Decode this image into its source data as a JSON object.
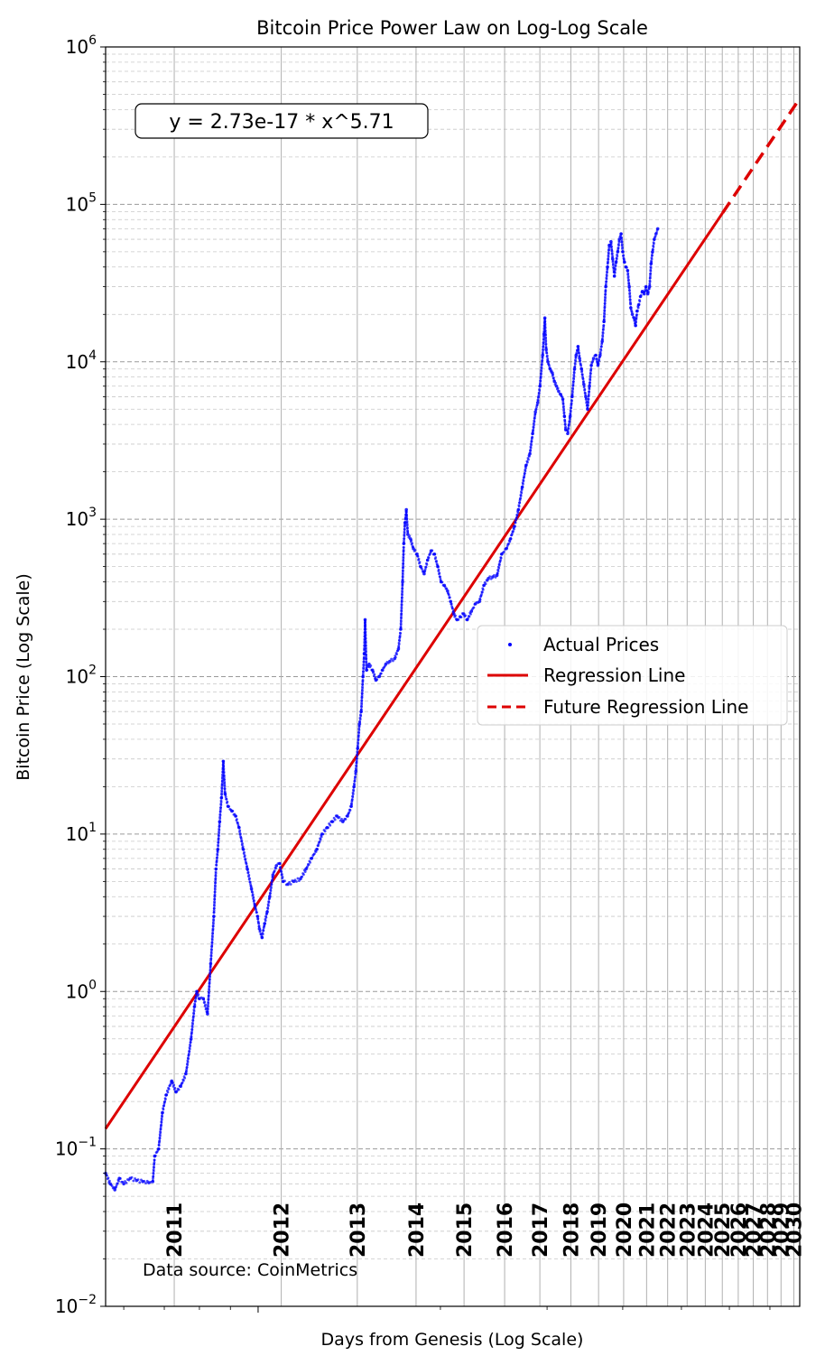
{
  "chart_data": {
    "type": "scatter",
    "title": "Bitcoin Price Power Law on Log-Log Scale",
    "xlabel": "Days from Genesis (Log Scale)",
    "ylabel": "Bitcoin Price (Log Scale)",
    "x_scale": "log",
    "y_scale": "log",
    "xlim": [
      560,
      7840
    ],
    "ylim": [
      0.01,
      1000000
    ],
    "grid": true,
    "legend_position": "center-right",
    "y_ticks": [
      {
        "base": "10",
        "exp": "−2",
        "value": 0.01
      },
      {
        "base": "10",
        "exp": "−1",
        "value": 0.1
      },
      {
        "base": "10",
        "exp": "0",
        "value": 1
      },
      {
        "base": "10",
        "exp": "1",
        "value": 10
      },
      {
        "base": "10",
        "exp": "2",
        "value": 100
      },
      {
        "base": "10",
        "exp": "3",
        "value": 1000
      },
      {
        "base": "10",
        "exp": "4",
        "value": 10000
      },
      {
        "base": "10",
        "exp": "5",
        "value": 100000
      },
      {
        "base": "10",
        "exp": "6",
        "value": 1000000
      }
    ],
    "year_markers": [
      {
        "label": "2011",
        "x": 727
      },
      {
        "label": "2012",
        "x": 1092
      },
      {
        "label": "2013",
        "x": 1458
      },
      {
        "label": "2014",
        "x": 1823
      },
      {
        "label": "2015",
        "x": 2188
      },
      {
        "label": "2016",
        "x": 2553
      },
      {
        "label": "2017",
        "x": 2919
      },
      {
        "label": "2018",
        "x": 3284
      },
      {
        "label": "2019",
        "x": 3649
      },
      {
        "label": "2020",
        "x": 4014
      },
      {
        "label": "2021",
        "x": 4380
      },
      {
        "label": "2022",
        "x": 4745
      },
      {
        "label": "2023",
        "x": 5110
      },
      {
        "label": "2024",
        "x": 5475
      },
      {
        "label": "2025",
        "x": 5841
      },
      {
        "label": "2026",
        "x": 6206
      },
      {
        "label": "2027",
        "x": 6571
      },
      {
        "label": "2028",
        "x": 6936
      },
      {
        "label": "2029",
        "x": 7302
      },
      {
        "label": "2030",
        "x": 7667
      }
    ],
    "equation_label": "y = 2.73e-17 * x^5.71",
    "source_note": "Data source: CoinMetrics",
    "regression": {
      "coefficient": 2.73e-17,
      "exponent": 5.71,
      "x_start": 560,
      "x_end": 5850,
      "future_x_end": 7840
    },
    "series": [
      {
        "name": "Actual Prices",
        "kind": "scatter",
        "color": "#0000ff",
        "points": [
          [
            560,
            0.07
          ],
          [
            570,
            0.06
          ],
          [
            580,
            0.055
          ],
          [
            590,
            0.065
          ],
          [
            600,
            0.06
          ],
          [
            615,
            0.065
          ],
          [
            630,
            0.063
          ],
          [
            645,
            0.062
          ],
          [
            660,
            0.061
          ],
          [
            670,
            0.062
          ],
          [
            675,
            0.09
          ],
          [
            685,
            0.1
          ],
          [
            695,
            0.17
          ],
          [
            705,
            0.22
          ],
          [
            720,
            0.27
          ],
          [
            732,
            0.23
          ],
          [
            745,
            0.25
          ],
          [
            760,
            0.3
          ],
          [
            775,
            0.5
          ],
          [
            785,
            0.8
          ],
          [
            792,
            1.0
          ],
          [
            800,
            0.9
          ],
          [
            812,
            0.9
          ],
          [
            825,
            0.72
          ],
          [
            835,
            1.5
          ],
          [
            845,
            3.0
          ],
          [
            852,
            6.0
          ],
          [
            858,
            8.0
          ],
          [
            864,
            12
          ],
          [
            870,
            17
          ],
          [
            876,
            29
          ],
          [
            882,
            18
          ],
          [
            892,
            15
          ],
          [
            905,
            14
          ],
          [
            918,
            13
          ],
          [
            930,
            11
          ],
          [
            945,
            8
          ],
          [
            960,
            6
          ],
          [
            975,
            4.5
          ],
          [
            988,
            3.5
          ],
          [
            998,
            3.0
          ],
          [
            1005,
            2.5
          ],
          [
            1015,
            2.2
          ],
          [
            1025,
            2.7
          ],
          [
            1035,
            3.2
          ],
          [
            1045,
            4.0
          ],
          [
            1058,
            5.5
          ],
          [
            1072,
            6.3
          ],
          [
            1085,
            6.5
          ],
          [
            1100,
            5.0
          ],
          [
            1120,
            4.8
          ],
          [
            1145,
            5.0
          ],
          [
            1175,
            5.2
          ],
          [
            1200,
            6.0
          ],
          [
            1225,
            7.0
          ],
          [
            1250,
            8.0
          ],
          [
            1275,
            10
          ],
          [
            1300,
            11
          ],
          [
            1325,
            12
          ],
          [
            1350,
            13
          ],
          [
            1380,
            12
          ],
          [
            1405,
            13
          ],
          [
            1425,
            15
          ],
          [
            1440,
            20
          ],
          [
            1450,
            25
          ],
          [
            1460,
            35
          ],
          [
            1470,
            50
          ],
          [
            1480,
            60
          ],
          [
            1490,
            100
          ],
          [
            1497,
            140
          ],
          [
            1502,
            230
          ],
          [
            1510,
            110
          ],
          [
            1525,
            120
          ],
          [
            1545,
            110
          ],
          [
            1565,
            95
          ],
          [
            1585,
            100
          ],
          [
            1605,
            110
          ],
          [
            1625,
            120
          ],
          [
            1650,
            125
          ],
          [
            1680,
            130
          ],
          [
            1705,
            150
          ],
          [
            1720,
            200
          ],
          [
            1732,
            400
          ],
          [
            1740,
            700
          ],
          [
            1748,
            950
          ],
          [
            1757,
            1150
          ],
          [
            1767,
            800
          ],
          [
            1785,
            750
          ],
          [
            1805,
            650
          ],
          [
            1830,
            600
          ],
          [
            1855,
            500
          ],
          [
            1880,
            450
          ],
          [
            1905,
            550
          ],
          [
            1930,
            630
          ],
          [
            1955,
            600
          ],
          [
            1980,
            500
          ],
          [
            2005,
            400
          ],
          [
            2030,
            380
          ],
          [
            2055,
            350
          ],
          [
            2080,
            300
          ],
          [
            2105,
            250
          ],
          [
            2130,
            230
          ],
          [
            2155,
            240
          ],
          [
            2185,
            250
          ],
          [
            2215,
            230
          ],
          [
            2250,
            260
          ],
          [
            2285,
            290
          ],
          [
            2320,
            300
          ],
          [
            2360,
            380
          ],
          [
            2400,
            420
          ],
          [
            2440,
            430
          ],
          [
            2480,
            440
          ],
          [
            2525,
            600
          ],
          [
            2570,
            650
          ],
          [
            2610,
            750
          ],
          [
            2650,
            900
          ],
          [
            2690,
            1150
          ],
          [
            2730,
            1600
          ],
          [
            2770,
            2200
          ],
          [
            2810,
            2600
          ],
          [
            2840,
            3500
          ],
          [
            2870,
            4800
          ],
          [
            2895,
            5500
          ],
          [
            2920,
            7000
          ],
          [
            2950,
            11000
          ],
          [
            2965,
            15000
          ],
          [
            2975,
            19000
          ],
          [
            2990,
            12000
          ],
          [
            3010,
            10000
          ],
          [
            3035,
            9000
          ],
          [
            3060,
            8500
          ],
          [
            3085,
            7500
          ],
          [
            3110,
            7000
          ],
          [
            3135,
            6500
          ],
          [
            3160,
            6200
          ],
          [
            3185,
            5800
          ],
          [
            3205,
            4500
          ],
          [
            3220,
            3700
          ],
          [
            3245,
            3500
          ],
          [
            3275,
            4500
          ],
          [
            3300,
            6000
          ],
          [
            3330,
            9000
          ],
          [
            3350,
            11000
          ],
          [
            3375,
            12500
          ],
          [
            3395,
            10500
          ],
          [
            3420,
            9000
          ],
          [
            3450,
            7200
          ],
          [
            3475,
            6000
          ],
          [
            3500,
            5000
          ],
          [
            3525,
            7000
          ],
          [
            3550,
            9500
          ],
          [
            3580,
            10500
          ],
          [
            3610,
            11000
          ],
          [
            3640,
            9500
          ],
          [
            3670,
            11000
          ],
          [
            3700,
            13500
          ],
          [
            3725,
            18000
          ],
          [
            3750,
            30000
          ],
          [
            3775,
            40000
          ],
          [
            3800,
            55000
          ],
          [
            3825,
            58000
          ],
          [
            3850,
            45000
          ],
          [
            3875,
            35000
          ],
          [
            3900,
            43000
          ],
          [
            3925,
            50000
          ],
          [
            3950,
            60000
          ],
          [
            3975,
            65000
          ],
          [
            4000,
            50000
          ],
          [
            4025,
            43000
          ],
          [
            4050,
            40000
          ],
          [
            4075,
            38000
          ],
          [
            4100,
            30000
          ],
          [
            4125,
            22000
          ],
          [
            4150,
            20000
          ],
          [
            4175,
            19000
          ],
          [
            4200,
            17000
          ],
          [
            4225,
            21000
          ],
          [
            4250,
            23000
          ],
          [
            4280,
            26000
          ],
          [
            4310,
            28000
          ],
          [
            4340,
            27000
          ],
          [
            4370,
            30000
          ],
          [
            4400,
            27000
          ],
          [
            4430,
            30000
          ],
          [
            4455,
            42000
          ],
          [
            4480,
            50000
          ],
          [
            4510,
            60000
          ],
          [
            4540,
            65000
          ],
          [
            4570,
            70000
          ]
        ]
      },
      {
        "name": "Regression Line",
        "kind": "line",
        "color": "#dd0000",
        "style": "solid"
      },
      {
        "name": "Future Regression Line",
        "kind": "line",
        "color": "#dd0000",
        "style": "dashed"
      }
    ]
  }
}
